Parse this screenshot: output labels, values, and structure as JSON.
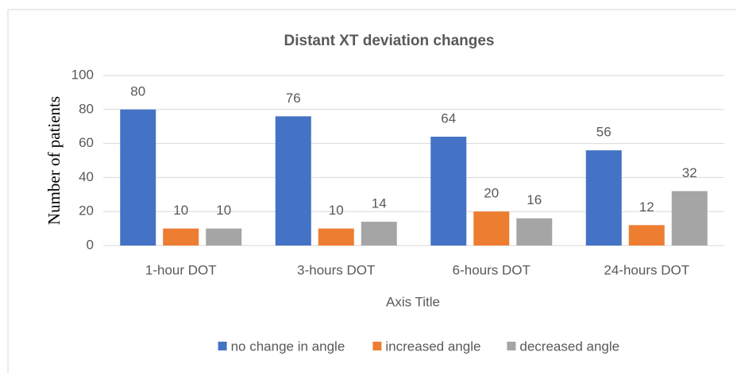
{
  "chart_data": {
    "type": "bar",
    "title": "Distant XT deviation changes",
    "x_label": "Axis Title",
    "y_label": "Number of patients",
    "categories": [
      "1-hour DOT",
      "3-hours DOT",
      "6-hours DOT",
      "24-hours DOT"
    ],
    "series": [
      {
        "name": "no change in angle",
        "color": "#4472c4",
        "values": [
          80,
          76,
          64,
          56
        ]
      },
      {
        "name": "increased angle",
        "color": "#ed7d31",
        "values": [
          10,
          10,
          20,
          12
        ]
      },
      {
        "name": "decreased angle",
        "color": "#a5a5a5",
        "values": [
          10,
          14,
          16,
          32
        ]
      }
    ],
    "ylim": [
      0,
      100
    ],
    "yticks": [
      0,
      20,
      40,
      60,
      80,
      100
    ],
    "grid": true,
    "legend": "bottom",
    "data_labels": true
  }
}
